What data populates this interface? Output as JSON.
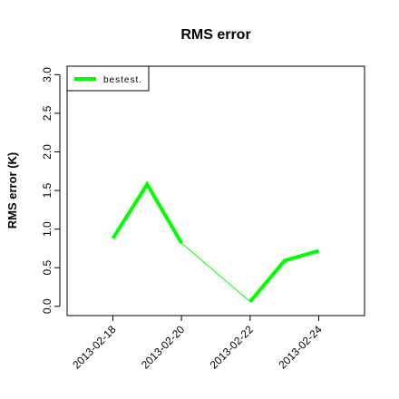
{
  "chart_data": {
    "type": "line",
    "title": "RMS error",
    "y_label": "RMS error (K)",
    "x": [
      "2013-02-18",
      "2013-02-19",
      "2013-02-20",
      "2013-02-21",
      "2013-02-22",
      "2013-02-23",
      "2013-02-24"
    ],
    "series": [
      {
        "name": "bestest.",
        "color": "#00ff00",
        "values": [
          0.88,
          1.58,
          0.82,
          null,
          0.06,
          0.59,
          0.72
        ]
      }
    ],
    "xlim": [
      "2013-02-16T16:00",
      "2013-02-25T08:00"
    ],
    "xticks": [
      "2013-02-18",
      "2013-02-20",
      "2013-02-22",
      "2013-02-24"
    ],
    "xtick_colors": [
      "#000000",
      "#000000",
      "#000000",
      "#ff0000"
    ],
    "ylim": [
      -0.12,
      3.11
    ],
    "yticks": [
      {
        "value": 0,
        "label": "0.0"
      },
      0.5,
      {
        "value": 1,
        "label": "1.0"
      },
      1.5,
      {
        "value": 2,
        "label": "2.0"
      },
      2.5,
      {
        "value": 3,
        "label": "3.0"
      }
    ],
    "legend": "top-left"
  }
}
